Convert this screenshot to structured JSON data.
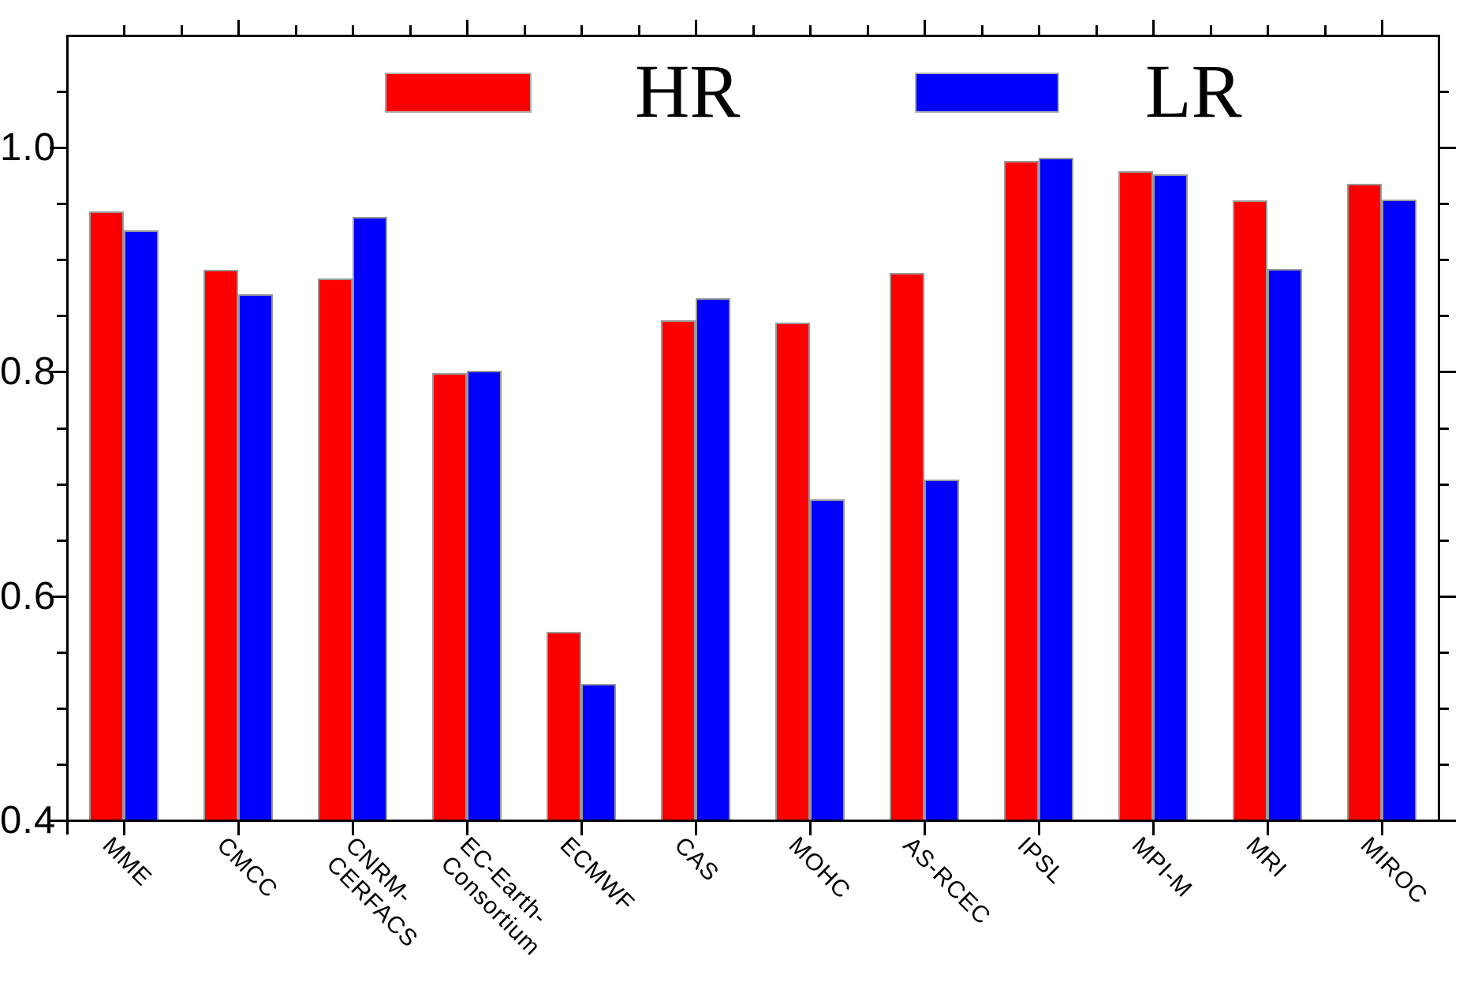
{
  "legend": {
    "hr_label": "HR",
    "lr_label": "LR"
  },
  "colors": {
    "hr_red": "#fc0000",
    "lr_blue": "#0000fc",
    "bar_border": "#9a9a9a",
    "axis": "#000000"
  },
  "chart_data": {
    "type": "bar",
    "categories": [
      "MME",
      "CMCC",
      "CNRM-\nCERFACS",
      "EC-Earth-\nConsortium",
      "ECMWF",
      "CAS",
      "MOHC",
      "AS-RCEC",
      "IPSL",
      "MPI-M",
      "MRI",
      "MIROC"
    ],
    "multiline_categories": [
      false,
      false,
      true,
      true,
      false,
      false,
      false,
      false,
      false,
      false,
      false,
      false
    ],
    "series": [
      {
        "name": "HR",
        "color": "#fc0000",
        "values": [
          0.943,
          0.891,
          0.883,
          0.799,
          0.568,
          0.846,
          0.844,
          0.888,
          0.988,
          0.979,
          0.953,
          0.968
        ]
      },
      {
        "name": "LR",
        "color": "#0000fc",
        "values": [
          0.926,
          0.869,
          0.938,
          0.801,
          0.522,
          0.866,
          0.686,
          0.704,
          0.991,
          0.976,
          0.892,
          0.954
        ]
      }
    ],
    "title": "",
    "xlabel": "",
    "ylabel": "",
    "ylim": [
      0.4,
      1.1
    ],
    "ytick_labels": [
      "1.0",
      "0.8",
      "0.6",
      "0.4"
    ],
    "ytick_labeled_values": [
      1.0,
      0.8,
      0.6,
      0.4
    ],
    "ytick_minor_step": 0.05,
    "grid": false,
    "legend_position": "top-center",
    "bar_orientation": "vertical"
  }
}
